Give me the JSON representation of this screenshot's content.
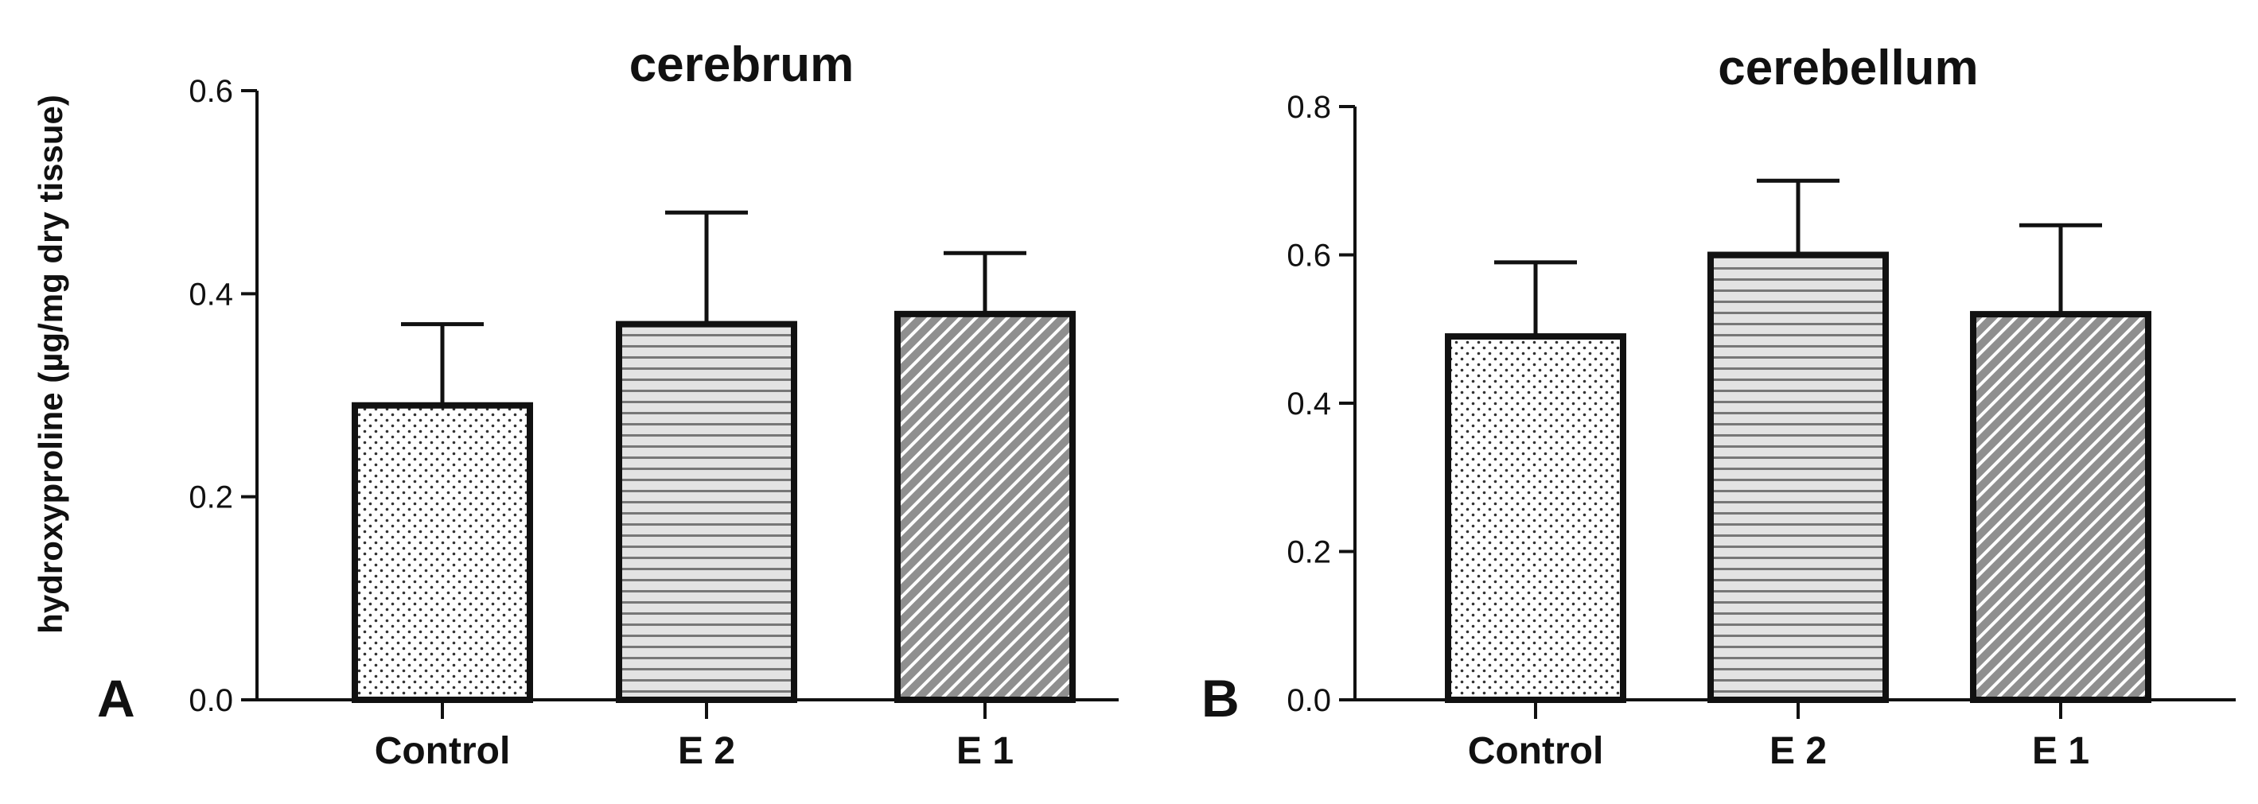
{
  "figure": {
    "ylabel": "hydroxyproline (µg/mg dry tissue)"
  },
  "chart_data": [
    {
      "type": "bar",
      "panel": "A",
      "title": "cerebrum",
      "xlabel": "",
      "ylabel": "hydroxyproline (µg/mg dry tissue)",
      "categories": [
        "Control",
        "E 2",
        "E 1"
      ],
      "values": [
        0.29,
        0.37,
        0.38
      ],
      "error_upper": [
        0.37,
        0.48,
        0.44
      ],
      "patterns": [
        "dots",
        "horizontal-lines",
        "diagonal-lines"
      ],
      "ylim": [
        0,
        0.6
      ],
      "yticks": [
        0.0,
        0.2,
        0.4,
        0.6
      ],
      "ytick_labels": [
        "0.0",
        "0.2",
        "0.4",
        "0.6"
      ],
      "grid": false
    },
    {
      "type": "bar",
      "panel": "B",
      "title": "cerebellum",
      "xlabel": "",
      "ylabel": "",
      "categories": [
        "Control",
        "E 2",
        "E 1"
      ],
      "values": [
        0.49,
        0.6,
        0.52
      ],
      "error_upper": [
        0.59,
        0.7,
        0.64
      ],
      "patterns": [
        "dots",
        "horizontal-lines",
        "diagonal-lines"
      ],
      "ylim": [
        0,
        0.8
      ],
      "yticks": [
        0.0,
        0.2,
        0.4,
        0.6,
        0.8
      ],
      "ytick_labels": [
        "0.0",
        "0.2",
        "0.4",
        "0.6",
        "0.8"
      ],
      "grid": false
    }
  ]
}
